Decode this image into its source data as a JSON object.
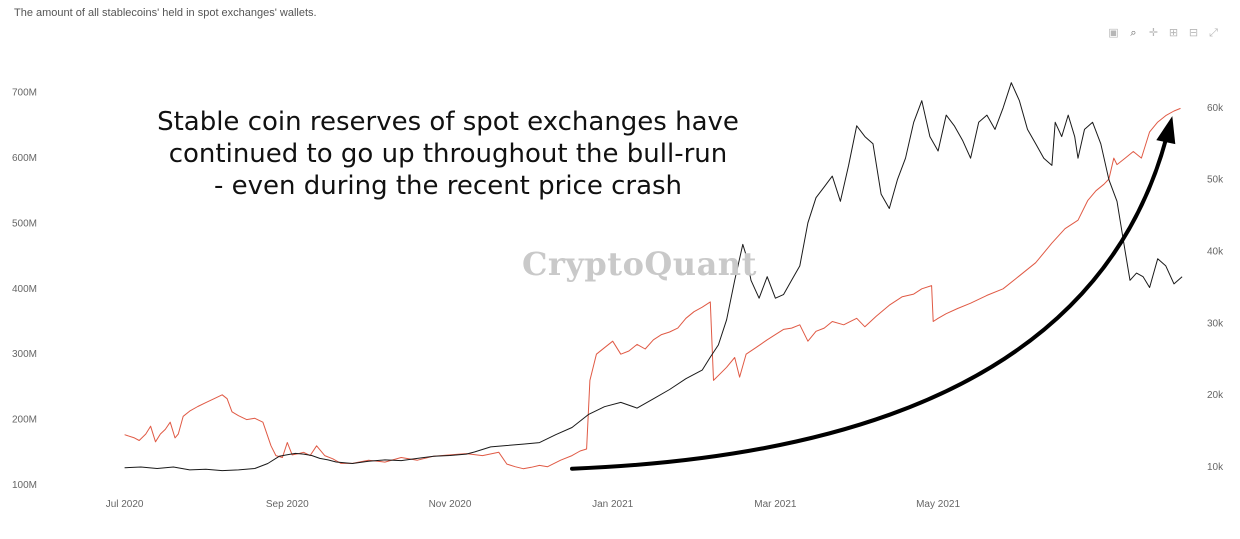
{
  "subtitle": "The amount of all stablecoins' held in spot exchanges' wallets.",
  "watermark": "CryptoQuant",
  "toolbar": [
    {
      "name": "camera-icon",
      "glyph": "▣"
    },
    {
      "name": "zoom-icon",
      "glyph": "⌕"
    },
    {
      "name": "pan-icon",
      "glyph": "✛"
    },
    {
      "name": "zoom-in-icon",
      "glyph": "⊞"
    },
    {
      "name": "zoom-out-icon",
      "glyph": "⊟"
    },
    {
      "name": "autoscale-icon",
      "glyph": "⤢"
    }
  ],
  "annotation": {
    "line1": "Stable coin reserves of spot exchanges have",
    "line2": "continued to go up throughout the bull-run",
    "line3": "- even during the recent price crash"
  },
  "chart_data": {
    "type": "line",
    "x_ticks": [
      "Jul 2020",
      "Sep 2020",
      "Nov 2020",
      "Jan 2021",
      "Mar 2021",
      "May 2021"
    ],
    "y_left_ticks": [
      "100M",
      "200M",
      "300M",
      "400M",
      "500M",
      "600M",
      "700M"
    ],
    "y_right_ticks": [
      "10k",
      "20k",
      "30k",
      "40k",
      "50k",
      "60k"
    ],
    "y_left_range": [
      100,
      700
    ],
    "y_right_range": [
      10000,
      60000
    ],
    "colors": {
      "reserve": "#e05a45",
      "price": "#1a1a1a",
      "arrow": "#000000"
    },
    "series": [
      {
        "axis": "left",
        "values": [
          [
            0,
            177
          ],
          [
            0.06,
            172
          ],
          [
            0.09,
            168
          ],
          [
            0.13,
            178
          ],
          [
            0.16,
            190
          ],
          [
            0.19,
            166
          ],
          [
            0.22,
            178
          ],
          [
            0.25,
            185
          ],
          [
            0.28,
            196
          ],
          [
            0.31,
            172
          ],
          [
            0.33,
            178
          ],
          [
            0.36,
            205
          ],
          [
            0.4,
            213
          ],
          [
            0.45,
            220
          ],
          [
            0.5,
            226
          ],
          [
            0.55,
            232
          ],
          [
            0.6,
            238
          ],
          [
            0.63,
            232
          ],
          [
            0.66,
            212
          ],
          [
            0.7,
            206
          ],
          [
            0.75,
            200
          ],
          [
            0.8,
            202
          ],
          [
            0.85,
            196
          ],
          [
            0.9,
            160
          ],
          [
            0.93,
            145
          ],
          [
            0.97,
            142
          ],
          [
            1.0,
            165
          ],
          [
            1.03,
            146
          ],
          [
            1.07,
            148
          ],
          [
            1.1,
            150
          ],
          [
            1.14,
            145
          ],
          [
            1.18,
            160
          ],
          [
            1.23,
            145
          ],
          [
            1.28,
            140
          ],
          [
            1.33,
            133
          ],
          [
            1.4,
            133
          ],
          [
            1.5,
            138
          ],
          [
            1.6,
            135
          ],
          [
            1.7,
            142
          ],
          [
            1.8,
            138
          ],
          [
            1.9,
            144
          ],
          [
            2.0,
            146
          ],
          [
            2.1,
            148
          ],
          [
            2.2,
            145
          ],
          [
            2.3,
            150
          ],
          [
            2.35,
            132
          ],
          [
            2.4,
            128
          ],
          [
            2.45,
            125
          ],
          [
            2.5,
            127
          ],
          [
            2.55,
            130
          ],
          [
            2.6,
            128
          ],
          [
            2.68,
            138
          ],
          [
            2.75,
            145
          ],
          [
            2.8,
            152
          ],
          [
            2.84,
            155
          ],
          [
            2.86,
            260
          ],
          [
            2.9,
            300
          ],
          [
            2.95,
            310
          ],
          [
            3.0,
            320
          ],
          [
            3.05,
            300
          ],
          [
            3.1,
            305
          ],
          [
            3.15,
            315
          ],
          [
            3.2,
            308
          ],
          [
            3.25,
            322
          ],
          [
            3.3,
            330
          ],
          [
            3.35,
            334
          ],
          [
            3.4,
            340
          ],
          [
            3.45,
            355
          ],
          [
            3.5,
            365
          ],
          [
            3.55,
            372
          ],
          [
            3.6,
            380
          ],
          [
            3.62,
            260
          ],
          [
            3.66,
            270
          ],
          [
            3.7,
            280
          ],
          [
            3.75,
            295
          ],
          [
            3.78,
            265
          ],
          [
            3.82,
            300
          ],
          [
            3.88,
            310
          ],
          [
            3.95,
            322
          ],
          [
            4.0,
            330
          ],
          [
            4.05,
            338
          ],
          [
            4.1,
            340
          ],
          [
            4.15,
            345
          ],
          [
            4.2,
            320
          ],
          [
            4.25,
            335
          ],
          [
            4.3,
            340
          ],
          [
            4.35,
            350
          ],
          [
            4.42,
            345
          ],
          [
            4.5,
            355
          ],
          [
            4.55,
            342
          ],
          [
            4.62,
            358
          ],
          [
            4.7,
            375
          ],
          [
            4.78,
            388
          ],
          [
            4.85,
            392
          ],
          [
            4.9,
            400
          ],
          [
            4.96,
            405
          ],
          [
            4.97,
            350
          ],
          [
            5.0,
            355
          ],
          [
            5.05,
            362
          ],
          [
            5.12,
            370
          ],
          [
            5.2,
            378
          ],
          [
            5.3,
            390
          ],
          [
            5.4,
            400
          ],
          [
            5.5,
            420
          ],
          [
            5.6,
            440
          ],
          [
            5.7,
            470
          ],
          [
            5.78,
            492
          ],
          [
            5.86,
            505
          ],
          [
            5.92,
            535
          ],
          [
            5.97,
            550
          ],
          [
            6.02,
            560
          ],
          [
            6.05,
            568
          ],
          [
            6.08,
            600
          ],
          [
            6.1,
            590
          ],
          [
            6.15,
            600
          ],
          [
            6.2,
            610
          ],
          [
            6.25,
            600
          ],
          [
            6.3,
            640
          ],
          [
            6.35,
            655
          ],
          [
            6.4,
            665
          ],
          [
            6.45,
            672
          ],
          [
            6.49,
            676
          ]
        ]
      },
      {
        "axis": "right",
        "values": [
          [
            0,
            9900
          ],
          [
            0.1,
            10000
          ],
          [
            0.2,
            9800
          ],
          [
            0.3,
            10000
          ],
          [
            0.4,
            9600
          ],
          [
            0.5,
            9700
          ],
          [
            0.6,
            9500
          ],
          [
            0.7,
            9600
          ],
          [
            0.8,
            9800
          ],
          [
            0.88,
            10500
          ],
          [
            0.95,
            11500
          ],
          [
            1.0,
            11700
          ],
          [
            1.05,
            11900
          ],
          [
            1.1,
            11800
          ],
          [
            1.15,
            11600
          ],
          [
            1.2,
            11200
          ],
          [
            1.25,
            11000
          ],
          [
            1.3,
            10700
          ],
          [
            1.4,
            10500
          ],
          [
            1.5,
            10800
          ],
          [
            1.6,
            11000
          ],
          [
            1.7,
            10900
          ],
          [
            1.8,
            11200
          ],
          [
            1.9,
            11500
          ],
          [
            2.0,
            11600
          ],
          [
            2.1,
            11800
          ],
          [
            2.15,
            12100
          ],
          [
            2.25,
            12800
          ],
          [
            2.35,
            13000
          ],
          [
            2.45,
            13200
          ],
          [
            2.55,
            13400
          ],
          [
            2.65,
            14500
          ],
          [
            2.75,
            15500
          ],
          [
            2.85,
            17300
          ],
          [
            2.95,
            18400
          ],
          [
            3.05,
            19000
          ],
          [
            3.15,
            18200
          ],
          [
            3.25,
            19500
          ],
          [
            3.35,
            20800
          ],
          [
            3.45,
            22300
          ],
          [
            3.55,
            23500
          ],
          [
            3.6,
            25300
          ],
          [
            3.65,
            27000
          ],
          [
            3.7,
            30500
          ],
          [
            3.75,
            36000
          ],
          [
            3.8,
            41000
          ],
          [
            3.82,
            39500
          ],
          [
            3.85,
            36000
          ],
          [
            3.9,
            33500
          ],
          [
            3.95,
            36500
          ],
          [
            4.0,
            33500
          ],
          [
            4.05,
            34000
          ],
          [
            4.1,
            36000
          ],
          [
            4.15,
            38000
          ],
          [
            4.2,
            44000
          ],
          [
            4.25,
            47500
          ],
          [
            4.3,
            49000
          ],
          [
            4.35,
            50500
          ],
          [
            4.4,
            47000
          ],
          [
            4.45,
            52000
          ],
          [
            4.5,
            57500
          ],
          [
            4.55,
            56000
          ],
          [
            4.6,
            55000
          ],
          [
            4.65,
            48000
          ],
          [
            4.7,
            46000
          ],
          [
            4.75,
            50000
          ],
          [
            4.8,
            53000
          ],
          [
            4.85,
            58000
          ],
          [
            4.9,
            61000
          ],
          [
            4.95,
            56000
          ],
          [
            5.0,
            54000
          ],
          [
            5.05,
            59000
          ],
          [
            5.1,
            57500
          ],
          [
            5.15,
            55500
          ],
          [
            5.2,
            53000
          ],
          [
            5.25,
            58000
          ],
          [
            5.3,
            59000
          ],
          [
            5.35,
            57000
          ],
          [
            5.4,
            60000
          ],
          [
            5.45,
            63500
          ],
          [
            5.5,
            61000
          ],
          [
            5.55,
            57000
          ],
          [
            5.6,
            55000
          ],
          [
            5.65,
            53000
          ],
          [
            5.7,
            52000
          ],
          [
            5.72,
            58000
          ],
          [
            5.76,
            56000
          ],
          [
            5.8,
            59000
          ],
          [
            5.84,
            56000
          ],
          [
            5.86,
            53000
          ],
          [
            5.9,
            57000
          ],
          [
            5.95,
            58000
          ],
          [
            6.0,
            55000
          ],
          [
            6.05,
            50000
          ],
          [
            6.1,
            47000
          ],
          [
            6.15,
            40000
          ],
          [
            6.18,
            36000
          ],
          [
            6.22,
            37000
          ],
          [
            6.26,
            36500
          ],
          [
            6.3,
            35000
          ],
          [
            6.35,
            39000
          ],
          [
            6.4,
            38000
          ],
          [
            6.45,
            35500
          ],
          [
            6.5,
            36500
          ]
        ]
      }
    ],
    "arrow": {
      "from": [
        2.75,
        125
      ],
      "to": [
        6.44,
        655
      ]
    }
  }
}
